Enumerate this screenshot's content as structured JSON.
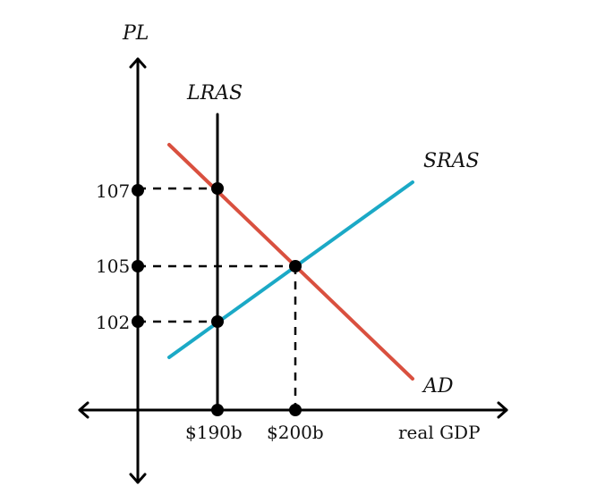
{
  "colors": {
    "ad": "#d9503f",
    "sras": "#1ba9c6",
    "lras": "#000000",
    "axis": "#000000"
  },
  "axes": {
    "y_label": "PL",
    "x_label": "real GDP"
  },
  "curves": {
    "lras_label": "LRAS",
    "sras_label": "SRAS",
    "ad_label": "AD"
  },
  "y_ticks": {
    "p107": "107",
    "p105": "105",
    "p102": "102"
  },
  "x_ticks": {
    "q190": "$190b",
    "q200": "$200b"
  }
}
